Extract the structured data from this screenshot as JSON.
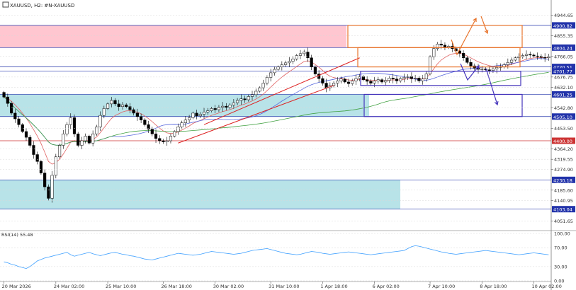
{
  "header": {
    "symbol_label": "XAUUSD, H2:  #N-XAUUSD"
  },
  "chart_data": {
    "type": "candlestick",
    "title": "XAUUSD, H2:  #N-XAUUSD",
    "price_axis": {
      "range": [
        4010,
        4968
      ],
      "ticks": [
        "4944.65",
        "4855.35",
        "4766.05",
        "4676.75",
        "4632.10",
        "4542.80",
        "4453.50",
        "4364.20",
        "4319.55",
        "4274.90",
        "4185.60",
        "4140.95",
        "4051.65"
      ],
      "tick_values": [
        4944.65,
        4855.35,
        4766.05,
        4676.75,
        4632.1,
        4542.8,
        4453.5,
        4364.2,
        4319.55,
        4274.9,
        4185.6,
        4140.95,
        4051.65
      ]
    },
    "time_axis": {
      "labels": [
        "20 Mar 2026",
        "24 Mar 02:00",
        "25 Mar 10:00",
        "26 Mar 18:00",
        "30 Mar 02:00",
        "31 Mar 10:00",
        "1 Apr 18:00",
        "6 Apr 02:00",
        "7 Apr 10:00",
        "8 Apr 18:00",
        "10 Apr 02:00"
      ],
      "label_candle_index": [
        0,
        14,
        28,
        43,
        57,
        72,
        86,
        100,
        115,
        129,
        143
      ]
    },
    "candle_count": 148,
    "closes": [
      4590,
      4562,
      4520,
      4495,
      4470,
      4440,
      4415,
      4380,
      4340,
      4310,
      4260,
      4200,
      4150,
      4250,
      4330,
      4380,
      4430,
      4470,
      4500,
      4430,
      4380,
      4400,
      4420,
      4390,
      4430,
      4460,
      4510,
      4540,
      4560,
      4575,
      4560,
      4548,
      4556,
      4548,
      4535,
      4520,
      4505,
      4490,
      4470,
      4450,
      4430,
      4410,
      4400,
      4395,
      4400,
      4420,
      4440,
      4460,
      4478,
      4490,
      4500,
      4520,
      4508,
      4515,
      4525,
      4530,
      4540,
      4535,
      4545,
      4550,
      4545,
      4555,
      4565,
      4575,
      4582,
      4578,
      4592,
      4600,
      4615,
      4630,
      4650,
      4675,
      4695,
      4710,
      4720,
      4730,
      4738,
      4745,
      4755,
      4770,
      4778,
      4785,
      4760,
      4720,
      4690,
      4670,
      4650,
      4630,
      4640,
      4650,
      4660,
      4668,
      4655,
      4648,
      4660,
      4670,
      4678,
      4665,
      4658,
      4650,
      4660,
      4665,
      4655,
      4662,
      4672,
      4668,
      4660,
      4670,
      4675,
      4678,
      4670,
      4672,
      4660,
      4668,
      4690,
      4765,
      4800,
      4820,
      4815,
      4805,
      4810,
      4800,
      4790,
      4780,
      4760,
      4740,
      4725,
      4715,
      4710,
      4712,
      4708,
      4705,
      4712,
      4718,
      4722,
      4730,
      4740,
      4750,
      4760,
      4765,
      4770,
      4775,
      4772,
      4768,
      4766,
      4762,
      4760,
      4765
    ],
    "indicators": {
      "ema_fast": {
        "color": "#e06060"
      },
      "ma_slow": {
        "color": "#5566dd"
      },
      "ma_long": {
        "color": "#40a040"
      }
    },
    "horizontal_levels": [
      {
        "price": 4900.82,
        "label": "4900.82",
        "line_color": "#2233aa",
        "label_bg": "#2233aa"
      },
      {
        "price": 4804.24,
        "label": "4804.24",
        "line_color": "#2233aa",
        "label_bg": "#2233aa"
      },
      {
        "price": 4720.51,
        "label": "4720.51",
        "line_color": "#2233aa",
        "label_bg": "#2233aa"
      },
      {
        "price": 4701.77,
        "label": "4701.77",
        "line_color": "#2233aa",
        "label_bg": "#2233aa"
      },
      {
        "price": 4601.25,
        "label": "4601.25",
        "line_color": "#2233aa",
        "label_bg": "#2233aa"
      },
      {
        "price": 4505.1,
        "label": "4505.10",
        "line_color": "#2233aa",
        "label_bg": "#2233aa"
      },
      {
        "price": 4400.0,
        "label": "4400.00",
        "line_color": "#cc3333",
        "label_bg": "#cc3333"
      },
      {
        "price": 4230.18,
        "label": "4230.18",
        "line_color": "#2233aa",
        "label_bg": "#2233aa"
      },
      {
        "price": 4103.04,
        "label": "4103.04",
        "line_color": "#2233aa",
        "label_bg": "#2233aa"
      }
    ],
    "zones": [
      {
        "kind": "supply",
        "price_top": 4900.82,
        "price_bottom": 4804.24,
        "color": "#ffc0cb"
      },
      {
        "kind": "demand",
        "price_top": 4601.25,
        "price_bottom": 4505.1,
        "color": "#b0e0e6"
      },
      {
        "kind": "demand",
        "price_top": 4230.18,
        "price_bottom": 4103.04,
        "color": "#b0e0e6"
      }
    ],
    "channel": {
      "color": "#dd2222"
    },
    "rsi": {
      "label": "RSI(14) 55.48",
      "value": 55.48,
      "range": [
        0,
        100
      ],
      "ticks": [
        "100.00",
        "70.00",
        "30.00",
        "0.00"
      ],
      "tick_values": [
        100,
        70,
        30,
        0
      ],
      "values": [
        40,
        38,
        35,
        33,
        30,
        28,
        26,
        30,
        36,
        42,
        45,
        48,
        50,
        52,
        54,
        56,
        58,
        60,
        55,
        52,
        54,
        56,
        58,
        60,
        57,
        55,
        53,
        55,
        57,
        59,
        60,
        58,
        56,
        55,
        53,
        52,
        50,
        48,
        46,
        45,
        44,
        46,
        48,
        50,
        52,
        54,
        56,
        58,
        57,
        56,
        55,
        54,
        55,
        56,
        58,
        60,
        62,
        61,
        60,
        59,
        58,
        57,
        56,
        57,
        58,
        60,
        62,
        64,
        65,
        66,
        67,
        68,
        66,
        64,
        62,
        60,
        58,
        57,
        56,
        55,
        56,
        58,
        60,
        62,
        61,
        60,
        58,
        57,
        56,
        57,
        58,
        59,
        60,
        61,
        60,
        59,
        58,
        57,
        56,
        55,
        56,
        57,
        58,
        59,
        60,
        61,
        62,
        63,
        64,
        68,
        72,
        74,
        73,
        71,
        69,
        67,
        65,
        63,
        61,
        60,
        58,
        57,
        56,
        57,
        58,
        59,
        60,
        61,
        62,
        63,
        64,
        63,
        62,
        61,
        60,
        59,
        58,
        57,
        56,
        55,
        56,
        57,
        58,
        59,
        58,
        57,
        56,
        55
      ]
    }
  },
  "colors": {
    "bull_candle": "#ffffff",
    "bear_candle": "#000000",
    "grid": "#d8d8d8",
    "axis_text": "#333333",
    "orange_box": "#e8742c",
    "purple_box": "#4433bb"
  }
}
